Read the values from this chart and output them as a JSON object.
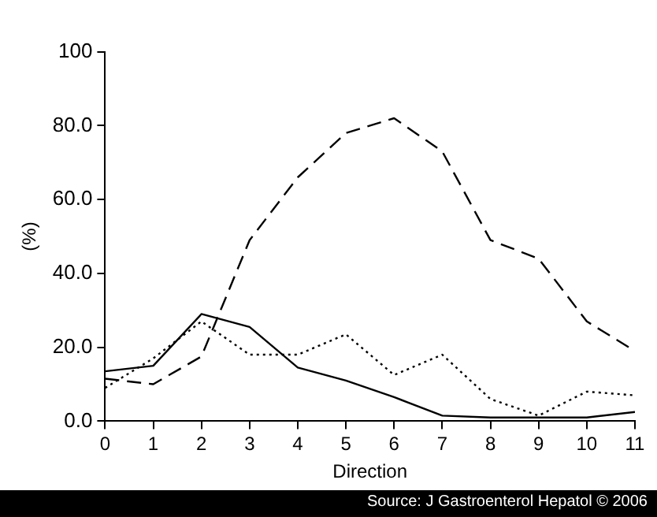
{
  "chart_data": {
    "type": "line",
    "xlabel": "Direction",
    "ylabel": "(%)",
    "x": [
      0,
      1,
      2,
      3,
      4,
      5,
      6,
      7,
      8,
      9,
      10,
      11
    ],
    "series": [
      {
        "color": "#000000",
        "line_style": "solid",
        "values": [
          13.5,
          15,
          29,
          25.5,
          14.5,
          11,
          6.5,
          1.5,
          1,
          1,
          1,
          2.5
        ]
      },
      {
        "color": "#000000",
        "line_style": "dashed",
        "values": [
          11.5,
          10,
          17.5,
          49,
          66,
          78,
          82,
          73,
          49,
          44,
          27,
          19
        ]
      },
      {
        "color": "#000000",
        "line_style": "dotted",
        "values": [
          9,
          17,
          27,
          18,
          18,
          23.5,
          12.5,
          18,
          6,
          1.5,
          8,
          7
        ]
      }
    ],
    "xlim": [
      0,
      11
    ],
    "xticks": [
      0,
      1,
      2,
      3,
      4,
      5,
      6,
      7,
      8,
      9,
      10,
      11
    ],
    "ylim": [
      0,
      100
    ],
    "yticks": [
      {
        "value": 0,
        "label": "0.0"
      },
      {
        "value": 20,
        "label": "20.0"
      },
      {
        "value": 40,
        "label": "40.0"
      },
      {
        "value": 60,
        "label": "60.0"
      },
      {
        "value": 80,
        "label": "80.0"
      },
      {
        "value": 100,
        "label": "100"
      }
    ],
    "grid": false,
    "legend": false,
    "marker": "none",
    "annotations": [
      "Source: J Gastroenterol Hepatol © 2006"
    ]
  }
}
